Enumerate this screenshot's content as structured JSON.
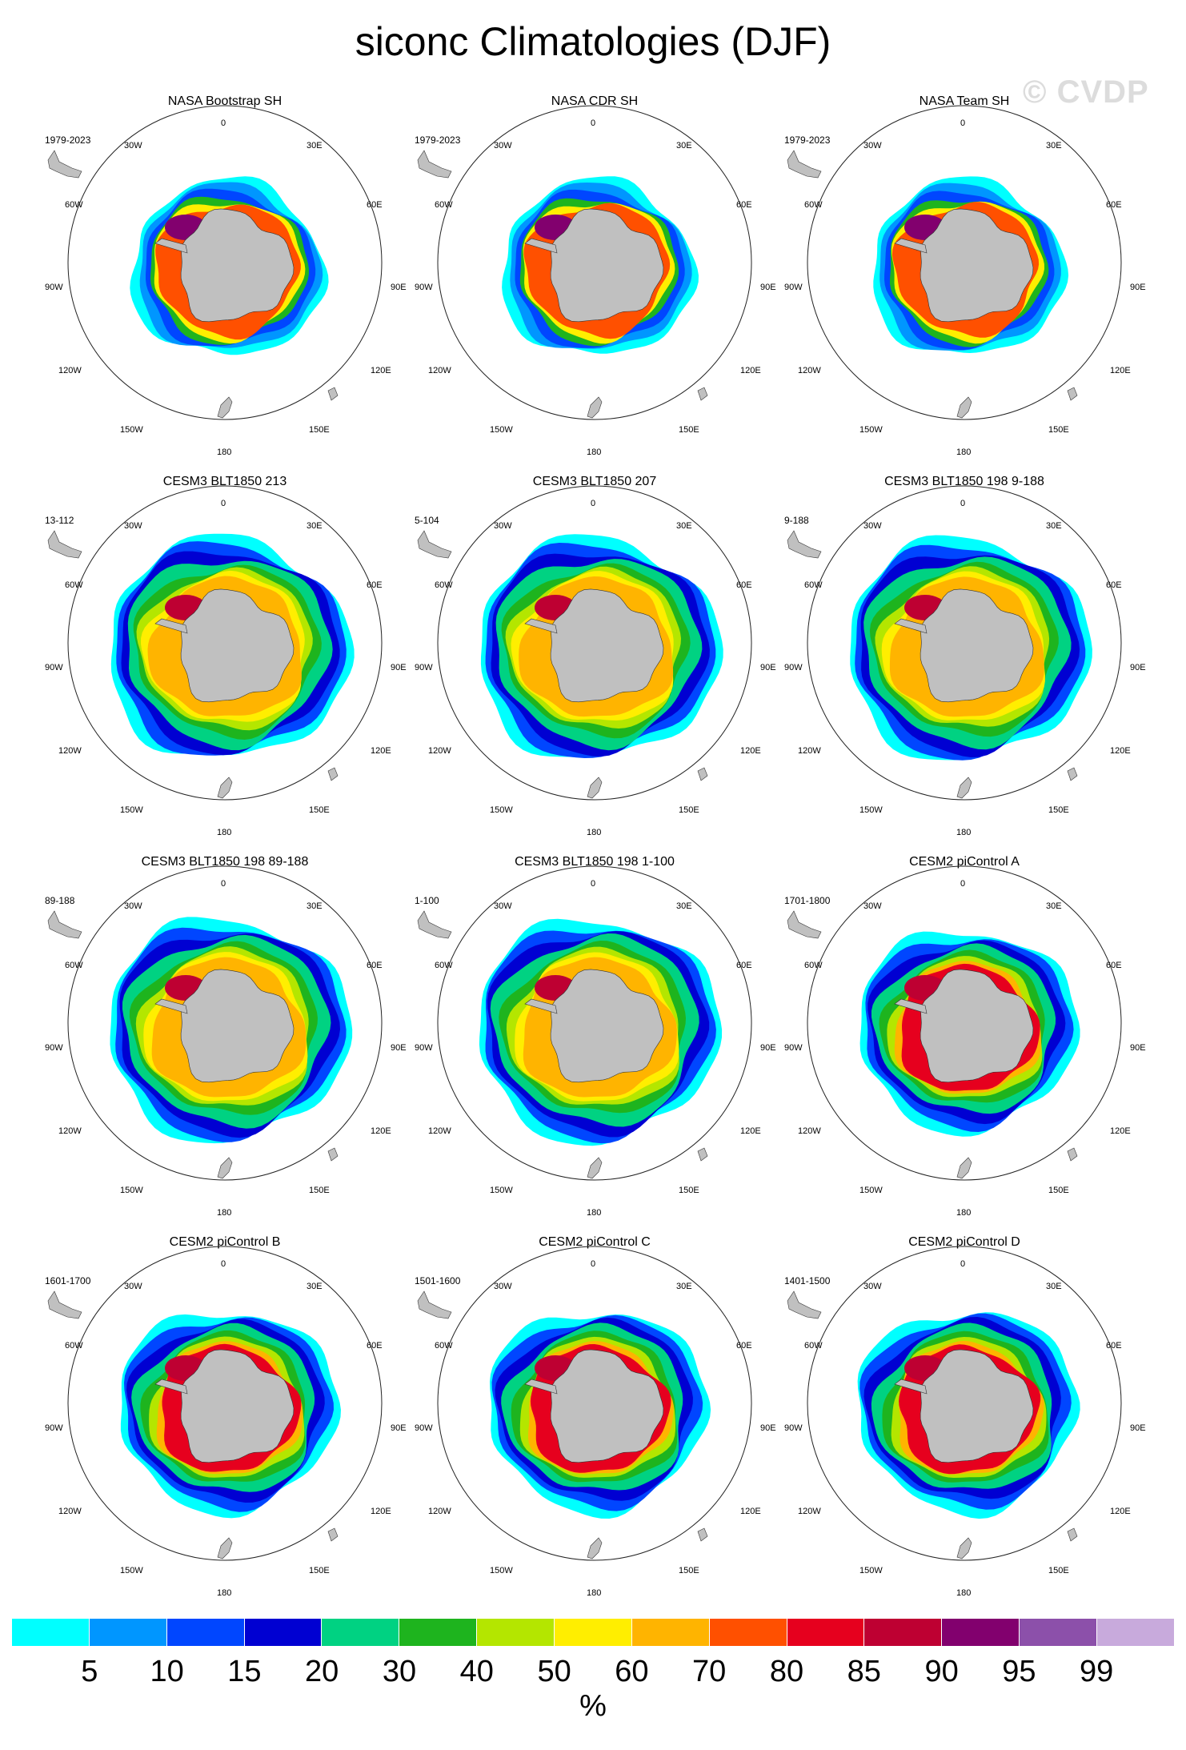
{
  "title": "siconc Climatologies (DJF)",
  "watermark": "© CVDP",
  "longitude_labels": {
    "top": "0",
    "n30w": "30W",
    "n30e": "30E",
    "n60w": "60W",
    "n60e": "60E",
    "n90w": "90W",
    "n90e": "90E",
    "n120w": "120W",
    "n120e": "120E",
    "n150w": "150W",
    "n150e": "150E",
    "bottom": "180"
  },
  "panels": [
    {
      "title": "NASA Bootstrap SH",
      "years": "1979-2023",
      "source": "obs"
    },
    {
      "title": "NASA CDR SH",
      "years": "1979-2023",
      "source": "obs"
    },
    {
      "title": "NASA Team SH",
      "years": "1979-2023",
      "source": "obs"
    },
    {
      "title": "CESM3 BLT1850 213",
      "years": "13-112",
      "source": "cesm3"
    },
    {
      "title": "CESM3 BLT1850 207",
      "years": "5-104",
      "source": "cesm3"
    },
    {
      "title": "CESM3 BLT1850 198 9-188",
      "years": "9-188",
      "source": "cesm3"
    },
    {
      "title": "CESM3 BLT1850 198 89-188",
      "years": "89-188",
      "source": "cesm3"
    },
    {
      "title": "CESM3 BLT1850 198 1-100",
      "years": "1-100",
      "source": "cesm3"
    },
    {
      "title": "CESM2 piControl A",
      "years": "1701-1800",
      "source": "cesm2"
    },
    {
      "title": "CESM2 piControl B",
      "years": "1601-1700",
      "source": "cesm2"
    },
    {
      "title": "CESM2 piControl C",
      "years": "1501-1600",
      "source": "cesm2"
    },
    {
      "title": "CESM2 piControl D",
      "years": "1401-1500",
      "source": "cesm2"
    }
  ],
  "colorbar": {
    "colors": [
      "#00ffff",
      "#0096ff",
      "#0046ff",
      "#0000d2",
      "#00d282",
      "#1eb41e",
      "#b4e600",
      "#ffee00",
      "#ffb400",
      "#ff5000",
      "#e6001e",
      "#be0032",
      "#82006e",
      "#8c50aa",
      "#c8aadc"
    ],
    "tick_labels": [
      "5",
      "10",
      "15",
      "20",
      "30",
      "40",
      "50",
      "60",
      "70",
      "80",
      "85",
      "90",
      "95",
      "99"
    ],
    "units": "%"
  },
  "land_color": "#c0c0c0"
}
